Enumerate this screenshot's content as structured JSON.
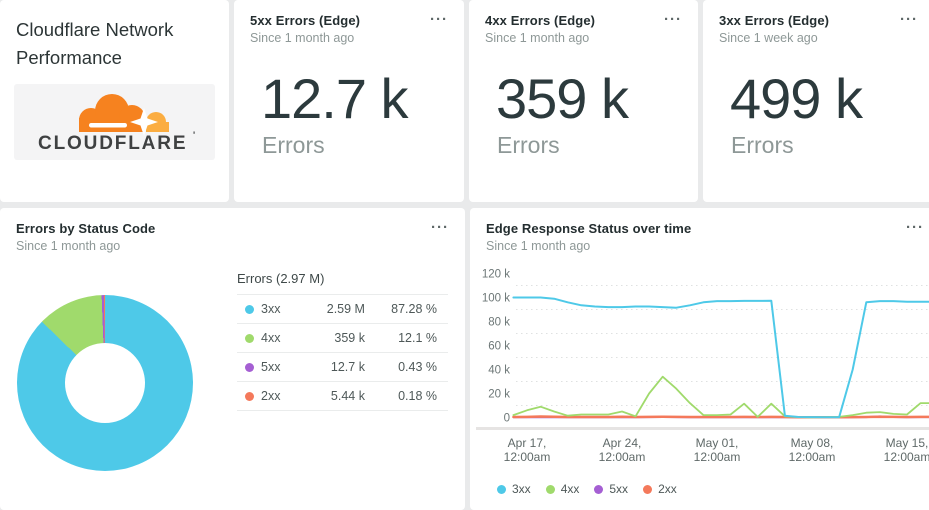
{
  "page": {
    "title": "Cloudflare Network Performance"
  },
  "brand": {
    "logo_text": "CLOUDFLARE",
    "logo_mark": "'",
    "cloud_color": "#F6821F",
    "cloud_light_color": "#FBAD41",
    "logo_text_color": "#3F4142"
  },
  "ui": {
    "more_icon": "···"
  },
  "kpis": [
    {
      "title": "5xx Errors (Edge)",
      "subtitle": "Since 1 month ago",
      "value": "12.7 k",
      "unit": "Errors"
    },
    {
      "title": "4xx Errors (Edge)",
      "subtitle": "Since 1 month ago",
      "value": "359 k",
      "unit": "Errors"
    },
    {
      "title": "3xx Errors (Edge)",
      "subtitle": "Since 1 week ago",
      "value": "499 k",
      "unit": "Errors"
    }
  ],
  "donut_card": {
    "title": "Errors by Status Code",
    "subtitle": "Since 1 month ago"
  },
  "line_card": {
    "title": "Edge Response Status over time",
    "subtitle": "Since 1 month ago"
  },
  "chart_data": [
    {
      "type": "donut",
      "title": "Errors by Status Code",
      "timeframe": "Since 1 month ago",
      "total_label": "Errors (2.97 M)",
      "slices": [
        {
          "label": "3xx",
          "value_label": "2.59 M",
          "percent": 87.28,
          "percent_label": "87.28 %",
          "color": "#4EC9E8"
        },
        {
          "label": "4xx",
          "value_label": "359 k",
          "percent": 12.1,
          "percent_label": "12.1 %",
          "color": "#A0DA6C"
        },
        {
          "label": "5xx",
          "value_label": "12.7 k",
          "percent": 0.43,
          "percent_label": "0.43 %",
          "color": "#A55FD3"
        },
        {
          "label": "2xx",
          "value_label": "5.44 k",
          "percent": 0.18,
          "percent_label": "0.18 %",
          "color": "#F4795B"
        }
      ]
    },
    {
      "type": "line",
      "title": "Edge Response Status over time",
      "timeframe": "Since 1 month ago",
      "ylim": [
        0,
        120000
      ],
      "grid": "dashed-horizontal",
      "legend_position": "bottom",
      "x": [
        "Apr 16",
        "Apr 17",
        "Apr 18",
        "Apr 19",
        "Apr 20",
        "Apr 21",
        "Apr 22",
        "Apr 23",
        "Apr 24",
        "Apr 25",
        "Apr 26",
        "Apr 27",
        "Apr 28",
        "Apr 29",
        "Apr 30",
        "May 01",
        "May 02",
        "May 03",
        "May 04",
        "May 05",
        "May 06",
        "May 07",
        "May 08",
        "May 09",
        "May 10",
        "May 11",
        "May 12",
        "May 13",
        "May 14",
        "May 15",
        "May 16"
      ],
      "x_ticks": [
        {
          "index": 1,
          "line1": "Apr 17,",
          "line2": "12:00am"
        },
        {
          "index": 8,
          "line1": "Apr 24,",
          "line2": "12:00am"
        },
        {
          "index": 15,
          "line1": "May 01,",
          "line2": "12:00am"
        },
        {
          "index": 22,
          "line1": "May 08,",
          "line2": "12:00am"
        },
        {
          "index": 29,
          "line1": "May 15,",
          "line2": "12:00am"
        }
      ],
      "y_ticks": [
        {
          "label": "120 k",
          "value": 120000
        },
        {
          "label": "100 k",
          "value": 100000
        },
        {
          "label": "80 k",
          "value": 80000
        },
        {
          "label": "60 k",
          "value": 60000
        },
        {
          "label": "40 k",
          "value": 40000
        },
        {
          "label": "20 k",
          "value": 20000
        },
        {
          "label": "0",
          "value": 0
        }
      ],
      "series": [
        {
          "name": "3xx",
          "color": "#4EC9E8",
          "width": 2,
          "values": [
            100000,
            100000,
            100000,
            99000,
            96000,
            93500,
            92500,
            92000,
            92000,
            92500,
            92500,
            92000,
            91500,
            93500,
            96000,
            97000,
            97000,
            97200,
            97200,
            97300,
            1500,
            400,
            300,
            200,
            200,
            40000,
            96000,
            97000,
            97000,
            96500,
            96500
          ]
        },
        {
          "name": "4xx",
          "color": "#A0DA6C",
          "width": 1.8,
          "values": [
            2000,
            6000,
            9000,
            5000,
            1500,
            2500,
            2500,
            2500,
            5000,
            1000,
            20000,
            34000,
            24000,
            12000,
            2000,
            2000,
            2500,
            11500,
            500,
            11500,
            1000,
            300,
            200,
            300,
            500,
            2000,
            4000,
            4500,
            3000,
            2500,
            12000
          ]
        },
        {
          "name": "5xx",
          "color": "#A55FD3",
          "width": 2,
          "values": [
            200,
            200,
            250,
            200,
            200,
            200,
            200,
            200,
            250,
            200,
            300,
            400,
            300,
            250,
            200,
            200,
            200,
            250,
            200,
            250,
            200,
            100,
            100,
            100,
            100,
            200,
            300,
            900,
            400,
            250,
            300
          ]
        },
        {
          "name": "2xx",
          "color": "#F4795B",
          "width": 2.5,
          "values": [
            400,
            500,
            800,
            600,
            400,
            400,
            450,
            450,
            600,
            400,
            500,
            600,
            500,
            450,
            400,
            400,
            450,
            500,
            400,
            500,
            400,
            200,
            150,
            150,
            200,
            300,
            400,
            700,
            500,
            400,
            500
          ]
        }
      ]
    }
  ]
}
